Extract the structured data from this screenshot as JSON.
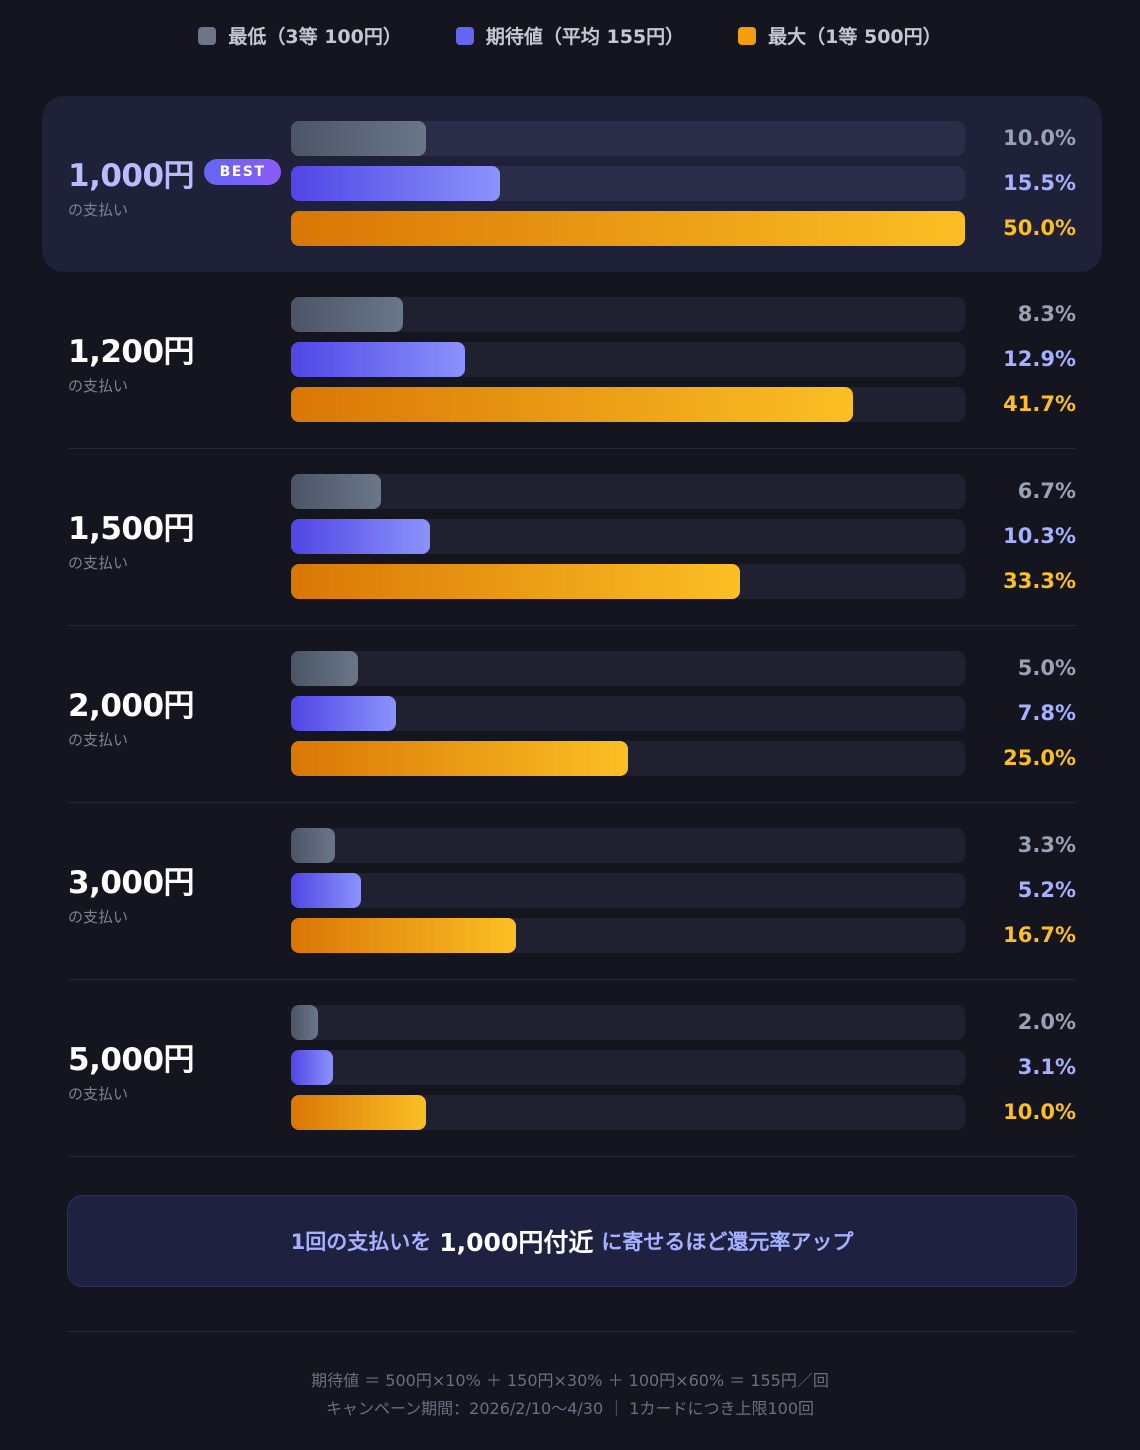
{
  "legend": [
    {
      "label": "最低（3等 100円）",
      "color": "#6b7689"
    },
    {
      "label": "期待値（平均 155円）",
      "color": "#6366f1"
    },
    {
      "label": "最大（1等 500円）",
      "color": "#f59e0b"
    }
  ],
  "chart_data": {
    "type": "bar",
    "orientation": "horizontal",
    "categories": [
      "1,000円",
      "1,200円",
      "1,500円",
      "2,000円",
      "3,000円",
      "5,000円"
    ],
    "category_sublabel": "の支払い",
    "best_category": "1,000円",
    "best_badge": "BEST",
    "xlim": [
      0,
      50
    ],
    "series": [
      {
        "name": "最低（3等 100円）",
        "values": [
          10.0,
          8.3,
          6.7,
          5.0,
          3.3,
          2.0
        ],
        "labels": [
          "10.0%",
          "8.3%",
          "6.7%",
          "5.0%",
          "3.3%",
          "2.0%"
        ]
      },
      {
        "name": "期待値（平均 155円）",
        "values": [
          15.5,
          12.9,
          10.3,
          7.8,
          5.2,
          3.1
        ],
        "labels": [
          "15.5%",
          "12.9%",
          "10.3%",
          "7.8%",
          "5.2%",
          "3.1%"
        ]
      },
      {
        "name": "最大（1等 500円）",
        "values": [
          50.0,
          41.7,
          33.3,
          25.0,
          16.7,
          10.0
        ],
        "labels": [
          "50.0%",
          "41.7%",
          "33.3%",
          "25.0%",
          "16.7%",
          "10.0%"
        ]
      }
    ]
  },
  "callout": {
    "prefix": "1回の支払いを",
    "emphasis": "1,000円付近",
    "suffix": "に寄せるほど還元率アップ"
  },
  "footnotes": [
    "期待値 ＝ 500円×10% ＋ 150円×30% ＋ 100円×60% ＝ 155円／回",
    "キャンペーン期間：2026/2/10〜4/30 ｜ 1カードにつき上限100回"
  ]
}
